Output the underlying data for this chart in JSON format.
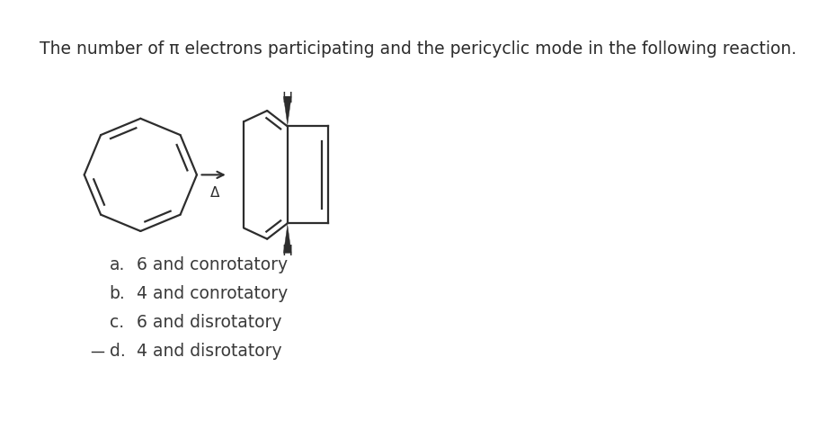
{
  "title": "The number of π electrons participating and the pericyclic mode in the following reaction.",
  "title_fontsize": 13.5,
  "title_color": "#2d2d2d",
  "bg_color": "#ffffff",
  "options": [
    {
      "label": "a.",
      "text": "6 and conrotatory"
    },
    {
      "label": "b.",
      "text": "4 and conrotatory"
    },
    {
      "label": "c.",
      "text": "6 and disrotatory"
    },
    {
      "label": "d.",
      "text": "4 and disrotatory"
    }
  ],
  "option_fontsize": 13.5,
  "option_color": "#3a3a3a",
  "line_color": "#2d2d2d",
  "line_width": 1.6
}
